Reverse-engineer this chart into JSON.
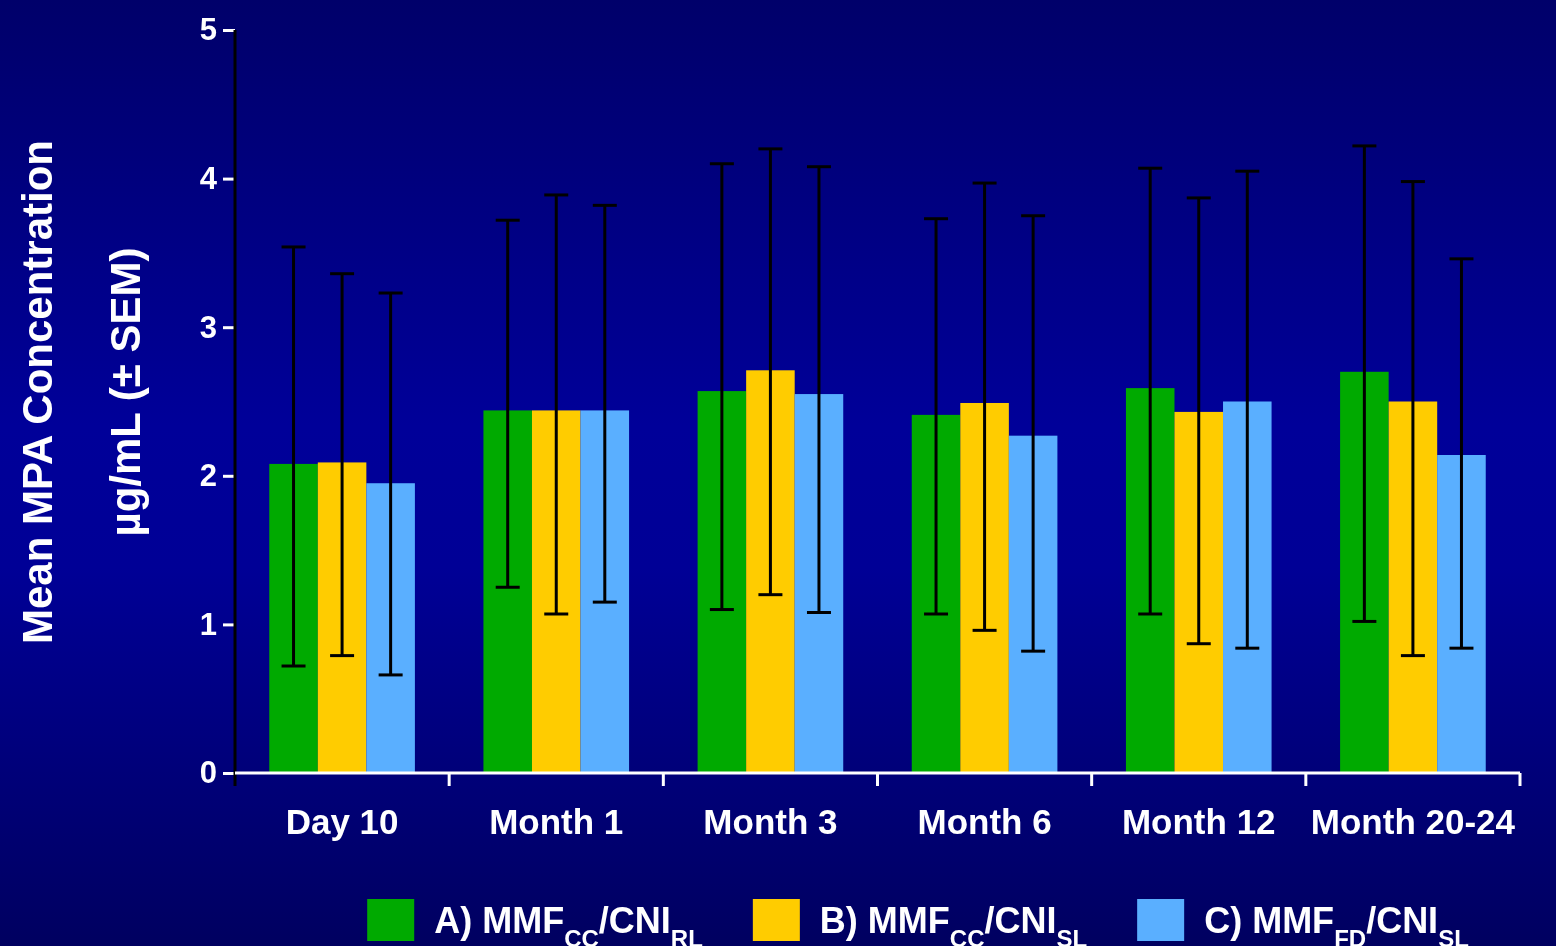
{
  "chart_data": {
    "type": "bar",
    "ylabel": "Mean MPA Concentration\nµg/mL (± SEM)",
    "categories": [
      "Day 10",
      "Month 1",
      "Month 3",
      "Month 6",
      "Month 12",
      "Month 20-24"
    ],
    "series": [
      {
        "name": "A) MMF$_{CC}$/CNI$_{RL}$",
        "color": "#00aa00",
        "values": [
          2.08,
          2.44,
          2.57,
          2.41,
          2.59,
          2.7
        ],
        "errors": [
          [
            0.72,
            3.54
          ],
          [
            1.25,
            3.72
          ],
          [
            1.1,
            4.1
          ],
          [
            1.07,
            3.73
          ],
          [
            1.07,
            4.07
          ],
          [
            1.02,
            4.22
          ]
        ]
      },
      {
        "name": "B) MMF$_{CC}$/CNI$_{SL}$",
        "color": "#ffcc00",
        "values": [
          2.09,
          2.44,
          2.71,
          2.49,
          2.43,
          2.5
        ],
        "errors": [
          [
            0.79,
            3.36
          ],
          [
            1.07,
            3.89
          ],
          [
            1.2,
            4.2
          ],
          [
            0.96,
            3.97
          ],
          [
            0.87,
            3.87
          ],
          [
            0.79,
            3.98
          ]
        ]
      },
      {
        "name": "C) MMF$_{FD}$/CNI$_{SL}$",
        "color": "#5aafff",
        "values": [
          1.95,
          2.44,
          2.55,
          2.27,
          2.5,
          2.14
        ],
        "errors": [
          [
            0.66,
            3.23
          ],
          [
            1.15,
            3.82
          ],
          [
            1.08,
            4.08
          ],
          [
            0.82,
            3.75
          ],
          [
            0.84,
            4.05
          ],
          [
            0.84,
            3.46
          ]
        ]
      }
    ],
    "ylim": [
      0,
      5
    ],
    "yticks": [
      0,
      1,
      2,
      3,
      4,
      5
    ],
    "grid": false,
    "legend": "bottom"
  }
}
